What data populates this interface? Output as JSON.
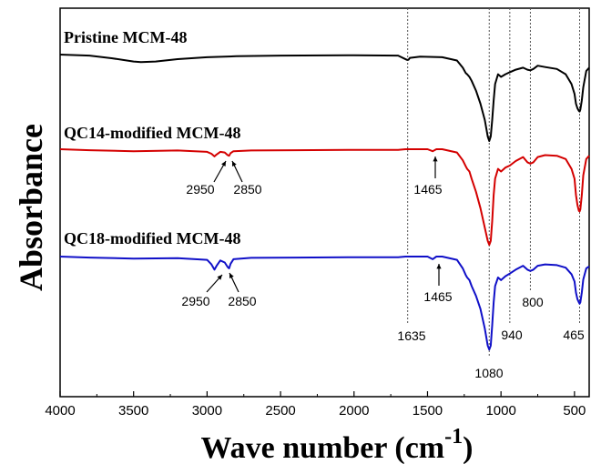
{
  "chart_data": {
    "type": "line",
    "xlabel": "Wave number (cm",
    "xlabel_superscript": "-1",
    "xlabel_close": ")",
    "ylabel": "Absorbance",
    "xlim": [
      4000,
      400
    ],
    "x_reversed": true,
    "x_ticks": [
      "4000",
      "3500",
      "3000",
      "2500",
      "2000",
      "1500",
      "1000",
      "500"
    ],
    "grid": false,
    "reference_lines": [
      1635,
      1080,
      940,
      800,
      465
    ],
    "series": [
      {
        "name": "Pristine MCM-48",
        "color": "#000000",
        "x": [
          4000,
          3800,
          3650,
          3500,
          3450,
          3350,
          3200,
          3000,
          2800,
          2500,
          2000,
          1700,
          1640,
          1630,
          1620,
          1550,
          1400,
          1300,
          1260,
          1240,
          1230,
          1215,
          1200,
          1170,
          1140,
          1110,
          1090,
          1080,
          1070,
          1060,
          1050,
          1040,
          1020,
          1000,
          970,
          940,
          900,
          850,
          820,
          800,
          780,
          750,
          700,
          620,
          560,
          520,
          500,
          490,
          480,
          470,
          465,
          460,
          450,
          440,
          420,
          400
        ],
        "y": [
          0.0,
          0.15,
          0.55,
          1.05,
          1.15,
          1.05,
          0.7,
          0.4,
          0.25,
          0.15,
          0.1,
          0.15,
          0.8,
          0.8,
          0.5,
          0.3,
          0.4,
          0.9,
          2.0,
          2.8,
          3.0,
          3.4,
          4.0,
          5.5,
          7.5,
          10.0,
          12.5,
          13.2,
          12.5,
          10.0,
          7.0,
          4.5,
          3.0,
          3.4,
          3.0,
          2.7,
          2.3,
          2.0,
          2.3,
          2.4,
          2.2,
          1.7,
          1.9,
          2.2,
          3.0,
          4.5,
          6.0,
          7.5,
          8.2,
          8.6,
          8.7,
          8.4,
          7.0,
          5.0,
          2.5,
          2.0
        ]
      },
      {
        "name": "QC14-modified MCM-48",
        "color": "#d40000",
        "x": [
          4000,
          3800,
          3500,
          3200,
          3000,
          2970,
          2950,
          2935,
          2910,
          2880,
          2860,
          2850,
          2840,
          2820,
          2700,
          2400,
          2000,
          1700,
          1650,
          1500,
          1465,
          1440,
          1400,
          1300,
          1260,
          1240,
          1230,
          1215,
          1200,
          1170,
          1140,
          1110,
          1090,
          1080,
          1070,
          1060,
          1050,
          1040,
          1020,
          1000,
          970,
          940,
          900,
          850,
          820,
          800,
          780,
          750,
          700,
          620,
          560,
          520,
          500,
          490,
          480,
          470,
          465,
          460,
          450,
          440,
          420,
          400
        ],
        "y": [
          0.0,
          0.15,
          0.3,
          0.2,
          0.4,
          0.7,
          1.1,
          0.8,
          0.4,
          0.5,
          0.9,
          1.0,
          0.6,
          0.3,
          0.2,
          0.15,
          0.1,
          0.1,
          0.0,
          0.0,
          0.3,
          0.0,
          0.0,
          0.5,
          1.7,
          2.6,
          3.0,
          3.4,
          4.5,
          6.5,
          9.0,
          12.0,
          14.0,
          14.6,
          14.0,
          11.0,
          7.0,
          4.5,
          3.0,
          3.4,
          2.8,
          2.5,
          1.8,
          1.2,
          2.0,
          2.2,
          2.0,
          1.2,
          0.9,
          1.0,
          1.5,
          3.0,
          4.5,
          7.0,
          8.5,
          9.4,
          9.5,
          9.2,
          7.0,
          4.0,
          1.5,
          1.0
        ]
      },
      {
        "name": "QC18-modified MCM-48",
        "color": "#1010c8",
        "x": [
          4000,
          3800,
          3500,
          3200,
          3000,
          2970,
          2950,
          2935,
          2910,
          2880,
          2860,
          2850,
          2840,
          2820,
          2700,
          2400,
          2000,
          1700,
          1650,
          1500,
          1465,
          1440,
          1400,
          1300,
          1260,
          1240,
          1230,
          1215,
          1200,
          1170,
          1140,
          1110,
          1090,
          1080,
          1070,
          1060,
          1050,
          1040,
          1020,
          1000,
          970,
          940,
          900,
          850,
          820,
          800,
          780,
          750,
          700,
          620,
          560,
          520,
          500,
          490,
          480,
          470,
          465,
          460,
          450,
          440,
          420,
          400
        ],
        "y": [
          0.0,
          0.15,
          0.3,
          0.25,
          0.5,
          1.2,
          2.0,
          1.4,
          0.6,
          0.9,
          1.6,
          1.8,
          1.1,
          0.4,
          0.2,
          0.15,
          0.1,
          0.1,
          0.0,
          0.0,
          0.4,
          0.0,
          0.0,
          0.5,
          1.8,
          2.8,
          3.2,
          3.6,
          4.5,
          6.0,
          8.0,
          11.0,
          13.6,
          14.2,
          13.6,
          10.5,
          7.0,
          4.5,
          3.2,
          3.6,
          3.0,
          2.6,
          2.0,
          1.4,
          2.0,
          2.2,
          2.0,
          1.4,
          1.2,
          1.3,
          1.7,
          2.7,
          3.8,
          5.5,
          6.5,
          7.0,
          7.2,
          7.0,
          5.5,
          3.5,
          1.8,
          1.5
        ]
      }
    ],
    "annotations": {
      "QC14-modified MCM-48": [
        "2950",
        "2850",
        "1465"
      ],
      "QC18-modified MCM-48": [
        "2950",
        "2850",
        "1465"
      ],
      "bottom": [
        "1635",
        "940",
        "800",
        "465",
        "1080"
      ]
    }
  }
}
